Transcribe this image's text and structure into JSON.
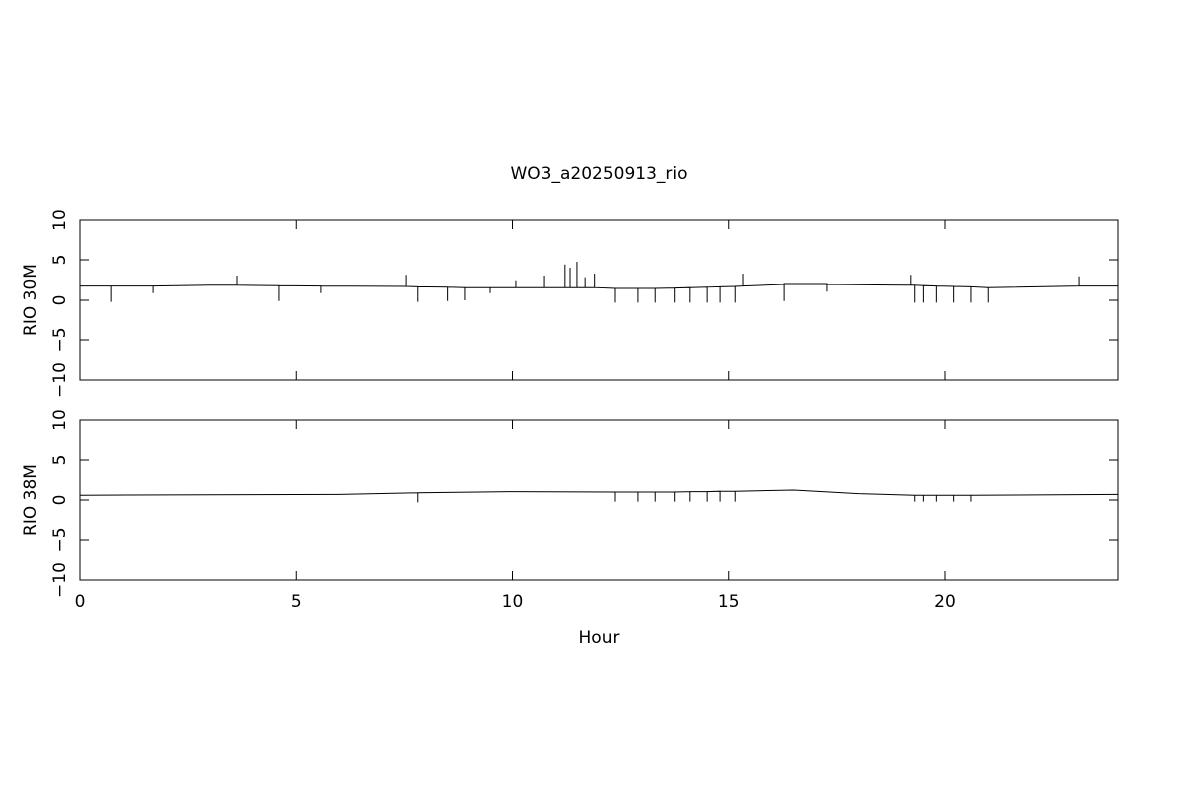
{
  "chart_data": [
    {
      "type": "line",
      "title": "WO3_a20250913_rio",
      "ylabel": "RIO 30M",
      "color": "#000000",
      "xlim": [
        0,
        24
      ],
      "ylim": [
        -10,
        10
      ],
      "yticks": [
        {
          "value": -10,
          "label": "−10"
        },
        {
          "value": -5,
          "label": "−5"
        },
        0,
        5,
        10
      ],
      "x": [
        0,
        0.72,
        0.72,
        0.72,
        1.69,
        1.69,
        1.69,
        3,
        3.63,
        3.63,
        3.63,
        4.6,
        4.6,
        4.6,
        5.57,
        5.57,
        5.57,
        7.54,
        7.54,
        7.54,
        7.81,
        7.81,
        7.81,
        8.5,
        8.5,
        8.5,
        8.9,
        8.9,
        8.9,
        9.48,
        9.48,
        9.48,
        10.08,
        10.08,
        10.08,
        10.73,
        10.73,
        10.73,
        11.21,
        11.21,
        11.21,
        11.33,
        11.33,
        11.33,
        11.49,
        11.49,
        11.49,
        11.68,
        11.68,
        11.68,
        11.9,
        11.9,
        11.9,
        12.37,
        12.37,
        12.37,
        12.9,
        12.9,
        12.9,
        13.3,
        13.3,
        13.3,
        13.75,
        13.75,
        13.75,
        14.1,
        14.1,
        14.1,
        14.5,
        14.5,
        14.5,
        14.8,
        14.8,
        14.8,
        15.15,
        15.15,
        15.15,
        15.33,
        15.33,
        15.33,
        16.28,
        16.28,
        16.28,
        17.27,
        17.27,
        17.27,
        19.21,
        19.21,
        19.21,
        19.3,
        19.3,
        19.3,
        19.5,
        19.5,
        19.5,
        19.8,
        19.8,
        19.8,
        20.2,
        20.2,
        20.2,
        20.6,
        20.6,
        20.6,
        21.0,
        21.0,
        21.0,
        23.1,
        23.1,
        23.1,
        24
      ],
      "values": [
        1.8,
        1.8,
        -0.2,
        1.8,
        1.8,
        0.9,
        1.8,
        1.9,
        1.9,
        3.0,
        1.9,
        1.85,
        -0.1,
        1.85,
        1.8,
        0.9,
        1.8,
        1.75,
        3.1,
        1.75,
        1.7,
        -0.2,
        1.7,
        1.65,
        -0.1,
        1.65,
        1.6,
        0,
        1.6,
        1.6,
        0.9,
        1.6,
        1.6,
        2.4,
        1.6,
        1.6,
        3.0,
        1.6,
        1.6,
        4.4,
        1.6,
        1.6,
        4.0,
        1.6,
        1.6,
        4.75,
        1.6,
        1.6,
        2.8,
        1.6,
        1.6,
        3.25,
        1.6,
        1.5,
        -0.3,
        1.5,
        1.5,
        -0.3,
        1.5,
        1.5,
        -0.3,
        1.5,
        1.55,
        -0.3,
        1.55,
        1.6,
        -0.3,
        1.6,
        1.65,
        -0.3,
        1.65,
        1.7,
        -0.3,
        1.7,
        1.75,
        -0.3,
        1.75,
        1.8,
        3.25,
        1.8,
        2.0,
        -0.1,
        2.0,
        2.0,
        1.1,
        2.0,
        1.9,
        3.1,
        1.9,
        1.9,
        -0.3,
        1.9,
        1.85,
        -0.3,
        1.85,
        1.8,
        -0.3,
        1.8,
        1.75,
        -0.3,
        1.75,
        1.7,
        -0.3,
        1.7,
        1.6,
        -0.3,
        1.6,
        1.8,
        2.9,
        1.8,
        1.8
      ]
    },
    {
      "type": "line",
      "ylabel": "RIO 38M",
      "xlabel": "Hour",
      "color": "#000000",
      "xlim": [
        0,
        24
      ],
      "ylim": [
        -10,
        10
      ],
      "xticks": [
        0,
        5,
        10,
        15,
        20
      ],
      "yticks": [
        {
          "value": -10,
          "label": "−10"
        },
        {
          "value": -5,
          "label": "−5"
        },
        0,
        5,
        10
      ],
      "x": [
        0,
        3,
        6,
        7.81,
        7.81,
        7.81,
        10,
        12.37,
        12.37,
        12.37,
        12.9,
        12.9,
        12.9,
        13.3,
        13.3,
        13.3,
        13.75,
        13.75,
        13.75,
        14.1,
        14.1,
        14.1,
        14.5,
        14.5,
        14.5,
        14.8,
        14.8,
        14.8,
        15.15,
        15.15,
        15.15,
        16.5,
        18,
        19.3,
        19.3,
        19.3,
        19.5,
        19.5,
        19.5,
        19.8,
        19.8,
        19.8,
        20.2,
        20.2,
        20.2,
        20.6,
        20.6,
        20.6,
        24
      ],
      "values": [
        0.6,
        0.65,
        0.7,
        0.9,
        -0.3,
        0.9,
        1.05,
        1.0,
        -0.2,
        1.0,
        1.0,
        -0.2,
        1.0,
        1.0,
        -0.2,
        1.0,
        1.0,
        -0.2,
        1.0,
        1.05,
        -0.2,
        1.05,
        1.05,
        -0.2,
        1.05,
        1.1,
        -0.2,
        1.1,
        1.1,
        -0.2,
        1.1,
        1.25,
        0.8,
        0.6,
        -0.2,
        0.6,
        0.6,
        -0.2,
        0.6,
        0.6,
        -0.2,
        0.6,
        0.6,
        -0.2,
        0.6,
        0.6,
        -0.2,
        0.6,
        0.7
      ]
    }
  ]
}
